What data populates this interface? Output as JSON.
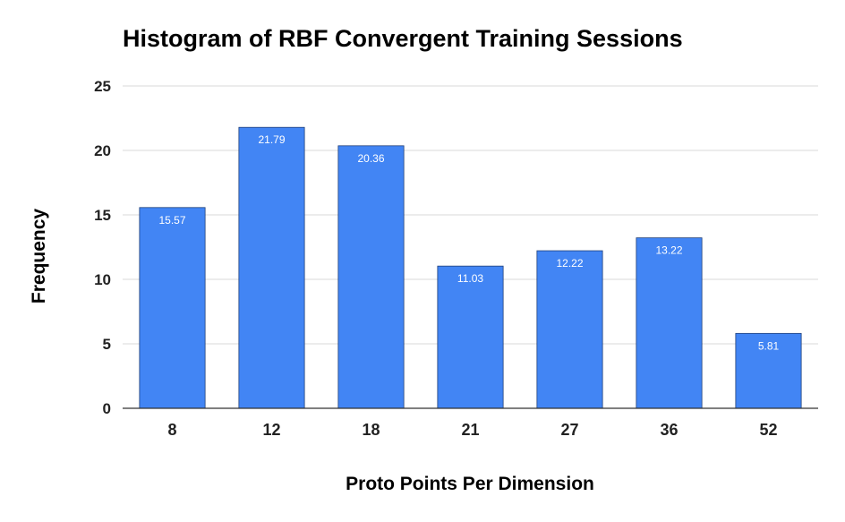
{
  "chart_data": {
    "type": "bar",
    "title": "Histogram of RBF Convergent Training Sessions",
    "xlabel": "Proto Points Per Dimension",
    "ylabel": "Frequency",
    "categories": [
      "8",
      "12",
      "18",
      "21",
      "27",
      "36",
      "52"
    ],
    "values": [
      15.57,
      21.79,
      20.36,
      11.03,
      12.22,
      13.22,
      5.81
    ],
    "data_labels": [
      "15.57",
      "21.79",
      "20.36",
      "11.03",
      "12.22",
      "13.22",
      "5.81"
    ],
    "ylim": [
      0,
      25
    ],
    "yticks": [
      0,
      5,
      10,
      15,
      20,
      25
    ],
    "grid": true,
    "legend": "none",
    "bar_color": "#4285f4",
    "bar_edge_color": "#1f3f7a"
  }
}
